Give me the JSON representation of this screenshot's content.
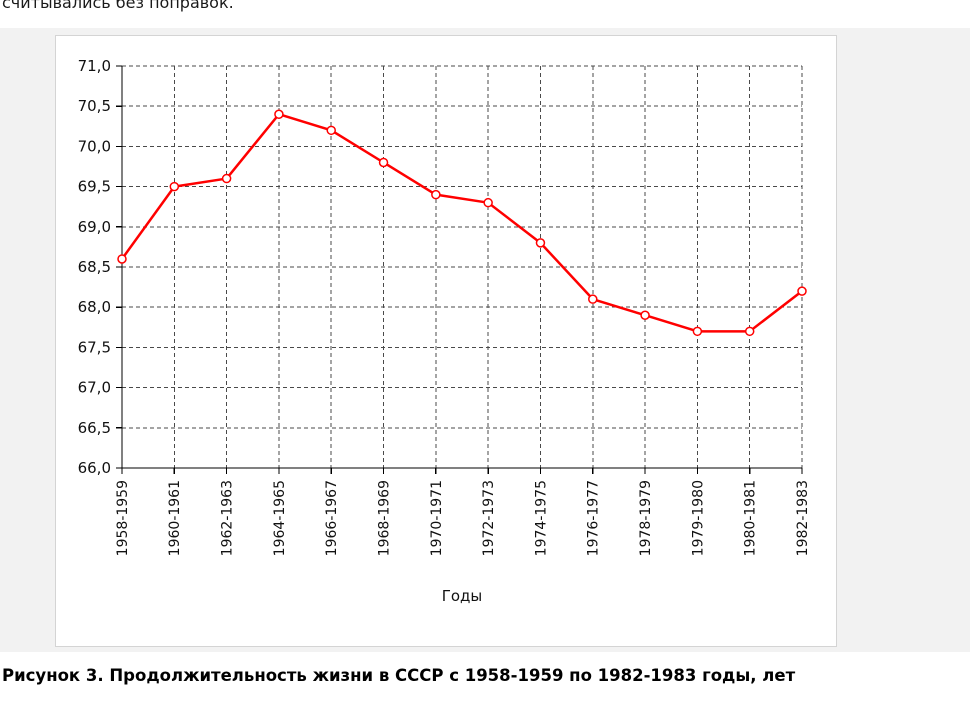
{
  "page": {
    "top_text": "считывались без поправок.",
    "caption": "Рисунок 3. Продолжительность жизни в СССР с 1958-1959 по 1982-1983 годы, лет"
  },
  "chart_data": {
    "type": "line",
    "title": "",
    "xlabel": "Годы",
    "ylabel": "",
    "categories": [
      "1958-1959",
      "1960-1961",
      "1962-1963",
      "1964-1965",
      "1966-1967",
      "1968-1969",
      "1970-1971",
      "1972-1973",
      "1974-1975",
      "1976-1977",
      "1978-1979",
      "1979-1980",
      "1980-1981",
      "1982-1983"
    ],
    "values": [
      68.6,
      69.5,
      69.6,
      70.4,
      70.2,
      69.8,
      69.4,
      69.3,
      68.8,
      68.1,
      67.9,
      67.7,
      67.7,
      68.2
    ],
    "ylim": [
      66.0,
      71.0
    ],
    "ytick_step": 0.5,
    "decimal_separator": ",",
    "grid": true,
    "legend_position": "none",
    "line_color": "#ff0000",
    "marker": "open-circle"
  }
}
